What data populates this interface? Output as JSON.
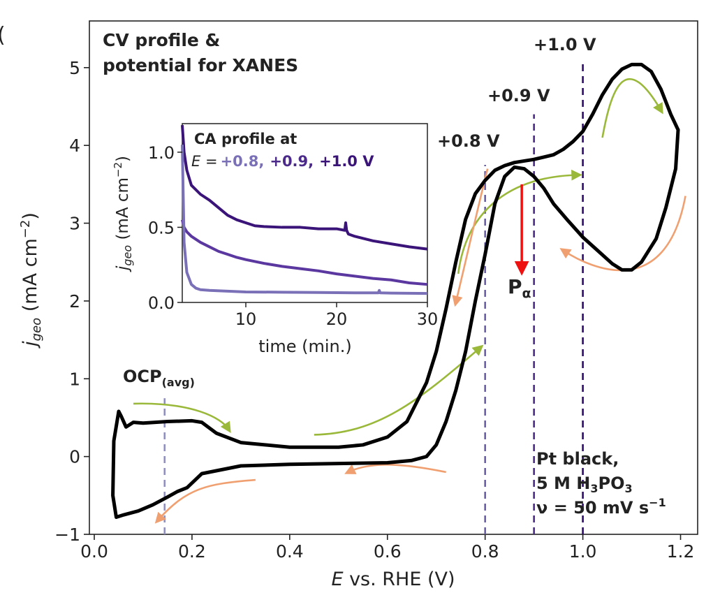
{
  "panel_letter": "(",
  "chart_data": [
    {
      "type": "line",
      "title": "CV profile & potential for XANES",
      "title_lines": [
        "CV profile &",
        "potential for XANES"
      ],
      "xlabel_italic": "E",
      "xlabel_rest": " vs. RHE (V)",
      "ylabel_main": "j",
      "ylabel_sub": "geo",
      "ylabel_unit": " (mA cm",
      "ylabel_exp": "−2",
      "ylabel_close": ")",
      "xlim": [
        -0.01,
        1.235
      ],
      "ylim": [
        -1.0,
        5.6
      ],
      "xticks": [
        0.0,
        0.2,
        0.4,
        0.6,
        0.8,
        1.0,
        1.2
      ],
      "xtick_labels": [
        "0.0",
        "0.2",
        "0.4",
        "0.6",
        "0.8",
        "1.0",
        "1.2"
      ],
      "yticks": [
        -1,
        0,
        1,
        2,
        3,
        4,
        5
      ],
      "ytick_labels": [
        "−1",
        "0",
        "1",
        "2",
        "3",
        "4",
        "5"
      ],
      "series": [
        {
          "name": "CV anodic sweep",
          "color": "#000000",
          "x": [
            0.05,
            0.055,
            0.065,
            0.08,
            0.1,
            0.15,
            0.2,
            0.22,
            0.25,
            0.3,
            0.4,
            0.5,
            0.55,
            0.6,
            0.64,
            0.68,
            0.7,
            0.72,
            0.74,
            0.76,
            0.78,
            0.8,
            0.82,
            0.84,
            0.86,
            0.88,
            0.9,
            0.92,
            0.94,
            0.96,
            0.98,
            1.0,
            1.02,
            1.04,
            1.06,
            1.08,
            1.1,
            1.12,
            1.14,
            1.16,
            1.18,
            1.195
          ],
          "y": [
            0.58,
            0.52,
            0.38,
            0.44,
            0.43,
            0.45,
            0.46,
            0.44,
            0.3,
            0.18,
            0.12,
            0.12,
            0.15,
            0.25,
            0.45,
            0.95,
            1.35,
            1.9,
            2.5,
            3.05,
            3.38,
            3.55,
            3.68,
            3.74,
            3.78,
            3.8,
            3.82,
            3.85,
            3.88,
            3.95,
            4.05,
            4.18,
            4.4,
            4.65,
            4.85,
            4.98,
            5.04,
            5.04,
            4.95,
            4.72,
            4.4,
            4.2
          ]
        },
        {
          "name": "CV cathodic sweep",
          "color": "#000000",
          "x": [
            1.195,
            1.19,
            1.17,
            1.15,
            1.12,
            1.1,
            1.08,
            1.06,
            1.03,
            1.0,
            0.97,
            0.94,
            0.92,
            0.9,
            0.88,
            0.86,
            0.84,
            0.82,
            0.8,
            0.78,
            0.76,
            0.74,
            0.72,
            0.7,
            0.68,
            0.65,
            0.6,
            0.5,
            0.4,
            0.3,
            0.22,
            0.19,
            0.17,
            0.15,
            0.12,
            0.09,
            0.06,
            0.045,
            0.038,
            0.04,
            0.05
          ],
          "y": [
            4.2,
            3.7,
            3.2,
            2.8,
            2.5,
            2.4,
            2.4,
            2.48,
            2.65,
            2.82,
            3.03,
            3.25,
            3.45,
            3.6,
            3.7,
            3.72,
            3.6,
            3.25,
            2.6,
            2.0,
            1.35,
            0.85,
            0.45,
            0.15,
            0.0,
            -0.05,
            -0.08,
            -0.09,
            -0.1,
            -0.12,
            -0.22,
            -0.4,
            -0.45,
            -0.52,
            -0.62,
            -0.7,
            -0.75,
            -0.78,
            -0.5,
            0.2,
            0.58
          ]
        }
      ],
      "markers": [
        {
          "name": "OCP(avg)",
          "x": 0.144,
          "ymin": -1.0,
          "ymax": 0.75,
          "color": "#9090c0",
          "label_main": "OCP",
          "label_sub": "(avg)"
        },
        {
          "name": "+0.8 V",
          "x": 0.8,
          "ymin": -1.0,
          "ymax": 3.75,
          "color": "#6a5fa8",
          "label": "+0.8 V"
        },
        {
          "name": "+0.9 V",
          "x": 0.9,
          "ymin": -1.0,
          "ymax": 4.4,
          "color": "#4b2a8a",
          "label": "+0.9 V"
        },
        {
          "name": "+1.0 V",
          "x": 1.0,
          "ymin": -1.0,
          "ymax": 5.05,
          "color": "#2e0a6e",
          "label": "+1.0 V"
        }
      ],
      "annotations": {
        "p_alpha": {
          "label_main": "P",
          "label_sub": "α",
          "color": "#ee1111",
          "x": 0.875,
          "y_start": 3.5,
          "y_end": 2.4
        },
        "conditions": {
          "line1": "Pt black,",
          "line2_prefix": "5 M H",
          "line2_sub1": "3",
          "line2_mid": "PO",
          "line2_sub2": "3",
          "line3_prefix": "ν = 50 mV s",
          "line3_exp": "−1"
        }
      },
      "arrows": [
        {
          "color": "#9ab83a",
          "points": [
            [
              0.08,
              0.68
            ],
            [
              0.2,
              0.7
            ],
            [
              0.26,
              0.5
            ],
            [
              0.275,
              0.35
            ]
          ]
        },
        {
          "color": "#9ab83a",
          "points": [
            [
              0.45,
              0.28
            ],
            [
              0.58,
              0.3
            ],
            [
              0.66,
              0.7
            ],
            [
              0.79,
              1.4
            ]
          ]
        },
        {
          "color": "#9ab83a",
          "points": [
            [
              0.745,
              2.35
            ],
            [
              0.76,
              3.1
            ],
            [
              0.84,
              3.6
            ],
            [
              0.99,
              3.62
            ]
          ]
        },
        {
          "color": "#9ab83a",
          "points": [
            [
              1.04,
              4.1
            ],
            [
              1.06,
              4.8
            ],
            [
              1.09,
              5.2
            ],
            [
              1.16,
              4.45
            ]
          ]
        },
        {
          "color": "#f0a070",
          "points": [
            [
              1.21,
              3.35
            ],
            [
              1.17,
              2.0
            ],
            [
              1.02,
              2.4
            ],
            [
              0.96,
              2.65
            ]
          ]
        },
        {
          "color": "#f0a070",
          "points": [
            [
              0.805,
              3.7
            ],
            [
              0.785,
              3.2
            ],
            [
              0.76,
              2.5
            ],
            [
              0.74,
              1.98
            ]
          ]
        },
        {
          "color": "#f0a070",
          "points": [
            [
              0.72,
              -0.2
            ],
            [
              0.64,
              -0.1
            ],
            [
              0.57,
              -0.05
            ],
            [
              0.52,
              -0.2
            ]
          ]
        },
        {
          "color": "#f0a070",
          "points": [
            [
              0.33,
              -0.3
            ],
            [
              0.23,
              -0.35
            ],
            [
              0.19,
              -0.4
            ],
            [
              0.13,
              -0.82
            ]
          ]
        }
      ]
    },
    {
      "type": "line",
      "title_line1": "CA profile at",
      "title_line2_italic": "E",
      "title_line2_eq": " =",
      "title_values": [
        {
          "text": "+0.8,",
          "color": "#7a70b8"
        },
        {
          "text": "+0.9,",
          "color": "#4b2a8a"
        },
        {
          "text": "+1.0 V",
          "color": "#3a1478"
        }
      ],
      "xlabel": "time (min.)",
      "ylabel_main": "j",
      "ylabel_sub": "geo",
      "ylabel_unit": " (mA cm",
      "ylabel_exp": "−2",
      "ylabel_close": ")",
      "xlim": [
        3.0,
        30.0
      ],
      "ylim": [
        0.0,
        1.19
      ],
      "xticks": [
        10,
        20,
        30
      ],
      "xtick_labels": [
        "10",
        "20",
        "30"
      ],
      "yticks": [
        0.0,
        0.5,
        1.0
      ],
      "ytick_labels": [
        "0.0",
        "0.5",
        "1.0"
      ],
      "series": [
        {
          "name": "+1.0 V",
          "color": "#3a1478",
          "x": [
            3.0,
            3.2,
            3.5,
            4.0,
            5.0,
            6.0,
            7.0,
            8.0,
            9.0,
            10.0,
            11.0,
            12.0,
            14.0,
            16.0,
            18.0,
            20.0,
            20.9,
            21.0,
            21.1,
            21.3,
            22.0,
            24.0,
            26.0,
            28.0,
            30.0
          ],
          "y": [
            1.18,
            1.0,
            0.88,
            0.78,
            0.72,
            0.68,
            0.63,
            0.58,
            0.55,
            0.53,
            0.51,
            0.505,
            0.5,
            0.5,
            0.49,
            0.49,
            0.48,
            0.53,
            0.48,
            0.455,
            0.44,
            0.41,
            0.39,
            0.37,
            0.355
          ]
        },
        {
          "name": "+0.9 V",
          "color": "#5a38a0",
          "x": [
            3.0,
            3.2,
            3.5,
            4.0,
            5.0,
            6.0,
            7.0,
            8.0,
            9.0,
            10.0,
            12.0,
            14.0,
            16.0,
            18.0,
            20.0,
            22.0,
            24.0,
            26.0,
            28.0,
            30.0
          ],
          "y": [
            0.55,
            0.5,
            0.47,
            0.44,
            0.4,
            0.37,
            0.34,
            0.32,
            0.3,
            0.285,
            0.26,
            0.24,
            0.225,
            0.21,
            0.19,
            0.175,
            0.16,
            0.15,
            0.13,
            0.12
          ]
        },
        {
          "name": "+0.8 V",
          "color": "#7a70b8",
          "x": [
            3.0,
            3.2,
            3.5,
            4.0,
            4.5,
            5.0,
            6.0,
            8.0,
            10.0,
            14.0,
            18.0,
            22.0,
            24.6,
            24.7,
            24.8,
            26.0,
            30.0
          ],
          "y": [
            1.05,
            0.4,
            0.2,
            0.12,
            0.095,
            0.085,
            0.08,
            0.075,
            0.07,
            0.068,
            0.066,
            0.064,
            0.064,
            0.08,
            0.064,
            0.062,
            0.06
          ]
        }
      ]
    }
  ]
}
